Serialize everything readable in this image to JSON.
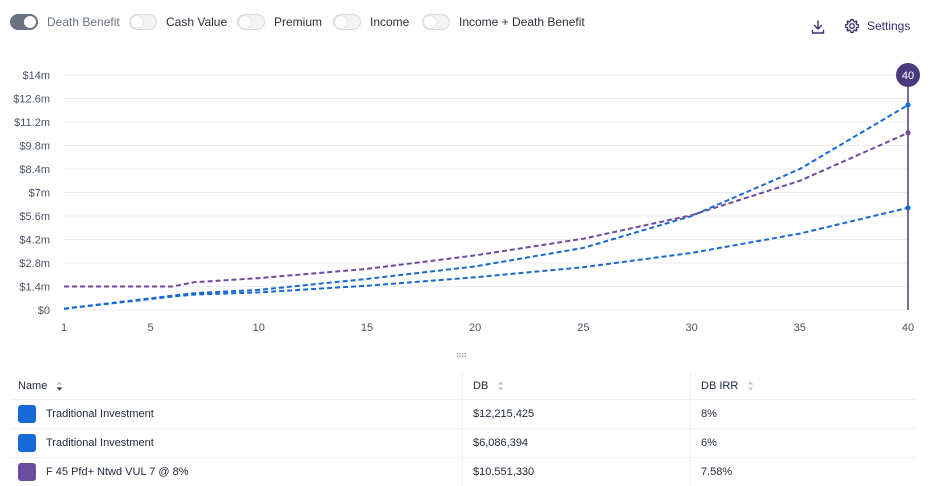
{
  "toolbar": {
    "toggles": [
      {
        "label": "Death Benefit",
        "on": true
      },
      {
        "label": "Cash Value",
        "on": false
      },
      {
        "label": "Premium",
        "on": false
      },
      {
        "label": "Income",
        "on": false
      },
      {
        "label": "Income + Death Benefit",
        "on": false
      }
    ],
    "download_icon": "download-icon",
    "settings_icon": "gear-icon",
    "settings_label": "Settings"
  },
  "colors": {
    "traditional": "#1669d6",
    "vul": "#6c4c9c",
    "marker": "#4b3a7e",
    "grid": "#eceef1",
    "axis_text": "#4b5563"
  },
  "chart_data": {
    "type": "line",
    "title": "",
    "xlabel": "",
    "ylabel": "",
    "x_ticks": [
      1,
      5,
      10,
      15,
      20,
      25,
      30,
      35,
      40
    ],
    "y_ticks": [
      "$0",
      "$1.4m",
      "$2.8m",
      "$4.2m",
      "$5.6m",
      "$7m",
      "$8.4m",
      "$9.8m",
      "$11.2m",
      "$12.6m",
      "$14m"
    ],
    "xlim": [
      1,
      40
    ],
    "ylim": [
      0,
      14000000
    ],
    "line_style": "dashed",
    "marker": {
      "year": 40,
      "label": "40"
    },
    "series": [
      {
        "name": "Traditional Investment",
        "color": "#1669d6",
        "x": [
          1,
          6,
          7,
          10,
          15,
          20,
          25,
          30,
          35,
          40
        ],
        "values": [
          80000,
          850000,
          1000000,
          1200000,
          1850000,
          2600000,
          3700000,
          5600000,
          8400000,
          12215425
        ]
      },
      {
        "name": "Traditional Investment",
        "color": "#1669d6",
        "x": [
          1,
          6,
          7,
          10,
          15,
          20,
          25,
          30,
          35,
          40
        ],
        "values": [
          80000,
          800000,
          920000,
          1050000,
          1450000,
          1950000,
          2550000,
          3400000,
          4550000,
          6086394
        ]
      },
      {
        "name": "F 45 Pfd+ Ntwd VUL 7 @ 8%",
        "color": "#6c4c9c",
        "x": [
          1,
          6,
          7,
          10,
          15,
          20,
          25,
          30,
          35,
          40
        ],
        "values": [
          1400000,
          1400000,
          1650000,
          1900000,
          2450000,
          3250000,
          4250000,
          5650000,
          7700000,
          10551330
        ]
      }
    ]
  },
  "table": {
    "headers": {
      "name": "Name",
      "db": "DB",
      "irr": "DB IRR"
    },
    "rows": [
      {
        "name": "Traditional Investment",
        "db": "$12,215,425",
        "irr": "8%",
        "color": "#1669d6"
      },
      {
        "name": "Traditional Investment",
        "db": "$6,086,394",
        "irr": "6%",
        "color": "#1669d6"
      },
      {
        "name": "F 45 Pfd+ Ntwd VUL 7 @ 8%",
        "db": "$10,551,330",
        "irr": "7.58%",
        "color": "#6c4c9c"
      }
    ]
  }
}
